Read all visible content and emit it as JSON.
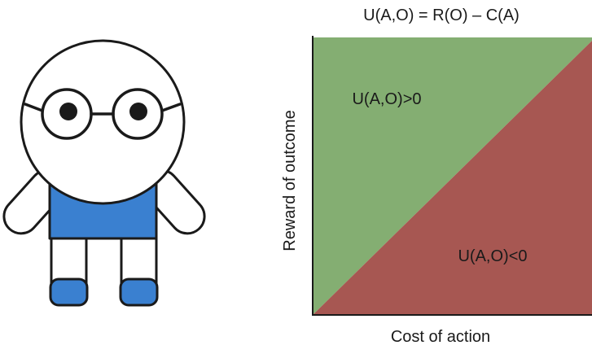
{
  "diagram": {
    "formula": "U(A,O) = R(O) – C(A)",
    "region_positive_label": "U(A,O)>0",
    "region_negative_label": "U(A,O)<0",
    "x_axis_label": "Cost of action",
    "y_axis_label": "Reward of outcome",
    "colors": {
      "positive_region": "#84AE72",
      "negative_region": "#A75752",
      "shirt": "#3A80D0",
      "shoes": "#3A80D0",
      "outline": "#1a1a1a"
    }
  }
}
